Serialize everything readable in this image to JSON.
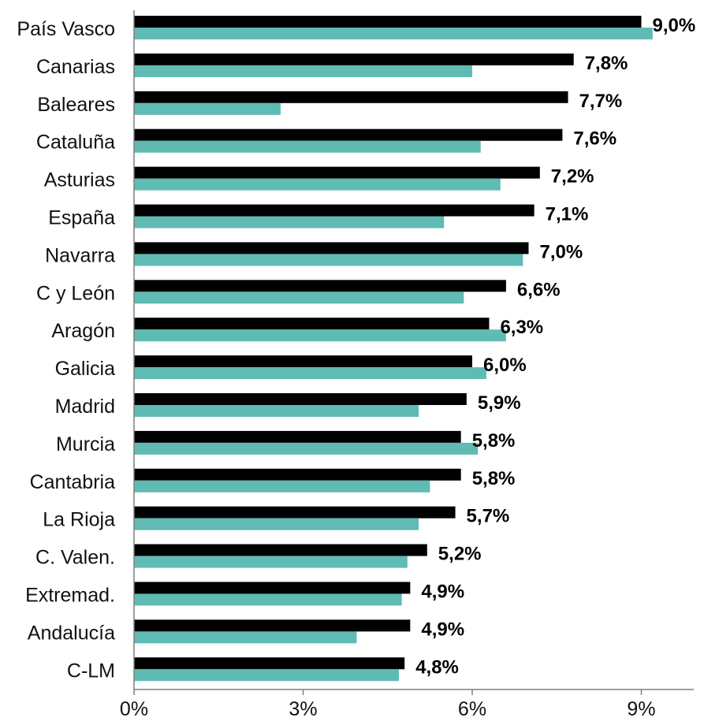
{
  "chart_data": {
    "type": "bar",
    "orientation": "horizontal",
    "categories": [
      "País Vasco",
      "Canarias",
      "Baleares",
      "Cataluña",
      "Asturias",
      "España",
      "Navarra",
      "C y León",
      "Aragón",
      "Galicia",
      "Madrid",
      "Murcia",
      "Cantabria",
      "La Rioja",
      "C. Valen.",
      "Extremad.",
      "Andalucía",
      "C-LM"
    ],
    "series": [
      {
        "color": "#000000",
        "values": [
          9.0,
          7.8,
          7.7,
          7.6,
          7.2,
          7.1,
          7.0,
          6.6,
          6.3,
          6.0,
          5.9,
          5.8,
          5.8,
          5.7,
          5.2,
          4.9,
          4.9,
          4.8
        ],
        "labels": [
          "9,0%",
          "7,8%",
          "7,7%",
          "7,6%",
          "7,2%",
          "7,1%",
          "7,0%",
          "6,6%",
          "6,3%",
          "6,0%",
          "5,9%",
          "5,8%",
          "5,8%",
          "5,7%",
          "5,2%",
          "4,9%",
          "4,9%",
          "4,8%"
        ]
      },
      {
        "color": "#5fbbb3",
        "values": [
          9.2,
          6.0,
          2.6,
          6.15,
          6.5,
          5.5,
          6.9,
          5.85,
          6.6,
          6.25,
          5.05,
          6.1,
          5.25,
          5.05,
          4.85,
          4.75,
          3.95,
          4.7
        ]
      }
    ],
    "xlim": [
      0,
      10
    ],
    "xticks": [
      0,
      3,
      6,
      9
    ],
    "xtick_labels": [
      "0%",
      "3%",
      "6%",
      "9%"
    ],
    "grid": false,
    "legend": "none",
    "title": "",
    "xlabel": "",
    "ylabel": ""
  }
}
